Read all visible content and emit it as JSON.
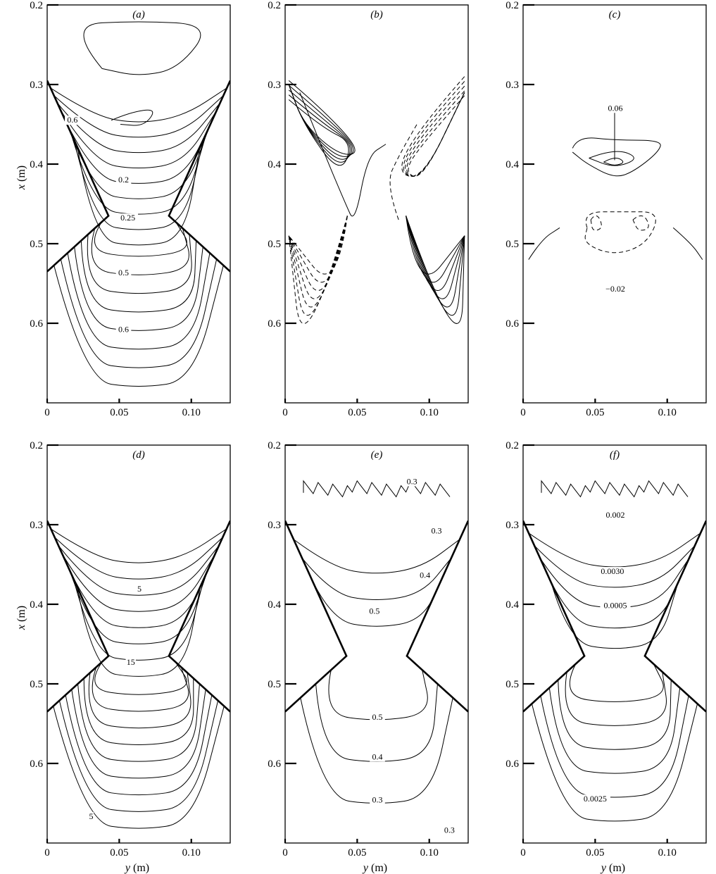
{
  "chart_data": [
    {
      "panel": "(a)",
      "type": "contour",
      "xlabel": "",
      "ylabel": "x (m)",
      "xlim": [
        0,
        0.127
      ],
      "ylim": [
        0.2,
        0.7
      ],
      "xticks": [
        "0",
        "0.05",
        "0.10"
      ],
      "yticks": [
        "0.2",
        "0.3",
        "0.4",
        "0.5",
        "0.6"
      ],
      "contour_labels": [
        {
          "text": "0.6",
          "y": 0.0175,
          "x": 0.348
        },
        {
          "text": "0.2",
          "y": 0.053,
          "x": 0.423
        },
        {
          "text": "0.25",
          "y": 0.056,
          "x": 0.471
        },
        {
          "text": "0.5",
          "y": 0.053,
          "x": 0.54
        },
        {
          "text": "0.6",
          "y": 0.053,
          "x": 0.611
        }
      ]
    },
    {
      "panel": "(b)",
      "type": "contour",
      "xlabel": "",
      "ylabel": "",
      "xlim": [
        0,
        0.127
      ],
      "ylim": [
        0.2,
        0.7
      ],
      "xticks": [
        "0",
        "0.05",
        "0.10"
      ],
      "yticks": [
        "0.2",
        "0.3",
        "0.4",
        "0.5",
        "0.6"
      ],
      "contour_labels": []
    },
    {
      "panel": "(c)",
      "type": "contour",
      "xlabel": "",
      "ylabel": "",
      "xlim": [
        0,
        0.127
      ],
      "ylim": [
        0.2,
        0.7
      ],
      "xticks": [
        "0",
        "0.05",
        "0.10"
      ],
      "yticks": [
        "0.2",
        "0.3",
        "0.4",
        "0.5",
        "0.6"
      ],
      "contour_labels": [
        {
          "text": "0.06",
          "y": 0.064,
          "x": 0.333
        },
        {
          "text": "−0.02",
          "y": 0.064,
          "x": 0.56
        }
      ]
    },
    {
      "panel": "(d)",
      "type": "contour",
      "xlabel": "y (m)",
      "ylabel": "x (m)",
      "xlim": [
        0,
        0.127
      ],
      "ylim": [
        0.2,
        0.7
      ],
      "xticks": [
        "0",
        "0.05",
        "0.10"
      ],
      "yticks": [
        "0.2",
        "0.3",
        "0.4",
        "0.5",
        "0.6"
      ],
      "contour_labels": [
        {
          "text": "5",
          "y": 0.064,
          "x": 0.384
        },
        {
          "text": "15",
          "y": 0.058,
          "x": 0.476
        },
        {
          "text": "5",
          "y": 0.0305,
          "x": 0.67
        }
      ]
    },
    {
      "panel": "(e)",
      "type": "contour",
      "xlabel": "y (m)",
      "ylabel": "",
      "xlim": [
        0,
        0.127
      ],
      "ylim": [
        0.2,
        0.7
      ],
      "xticks": [
        "0",
        "0.05",
        "0.10"
      ],
      "yticks": [
        "0.2",
        "0.3",
        "0.4",
        "0.5",
        "0.6"
      ],
      "contour_labels": [
        {
          "text": "0.3",
          "y": 0.088,
          "x": 0.249
        },
        {
          "text": "0.3",
          "y": 0.105,
          "x": 0.311
        },
        {
          "text": "0.4",
          "y": 0.097,
          "x": 0.367
        },
        {
          "text": "0.5",
          "y": 0.062,
          "x": 0.412
        },
        {
          "text": "0.5",
          "y": 0.064,
          "x": 0.545
        },
        {
          "text": "0.4",
          "y": 0.064,
          "x": 0.595
        },
        {
          "text": "0.3",
          "y": 0.064,
          "x": 0.649
        },
        {
          "text": "0.3",
          "y": 0.114,
          "x": 0.687
        }
      ]
    },
    {
      "panel": "(f)",
      "type": "contour",
      "xlabel": "y (m)",
      "ylabel": "",
      "xlim": [
        0,
        0.127
      ],
      "ylim": [
        0.2,
        0.7
      ],
      "xticks": [
        "0",
        "0.05",
        "0.10"
      ],
      "yticks": [
        "0.2",
        "0.3",
        "0.4",
        "0.5",
        "0.6"
      ],
      "contour_labels": [
        {
          "text": "0.002",
          "y": 0.064,
          "x": 0.291
        },
        {
          "text": "0.0030",
          "y": 0.062,
          "x": 0.362
        },
        {
          "text": "0.0005",
          "y": 0.064,
          "x": 0.405
        },
        {
          "text": "0.0025",
          "y": 0.05,
          "x": 0.648
        }
      ]
    }
  ]
}
